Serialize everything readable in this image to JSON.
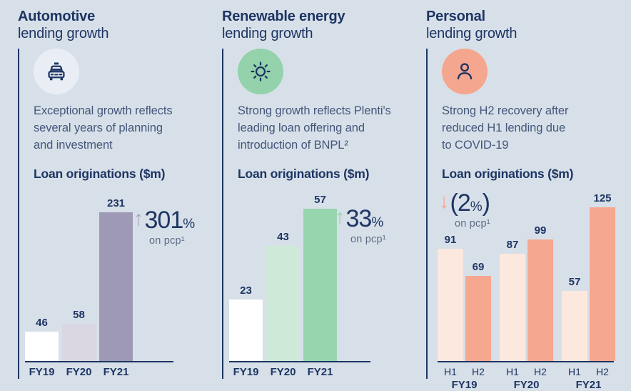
{
  "page": {
    "background": "#d7e0e9",
    "text_navy": "#1e3563",
    "body_text_color": "#44567a"
  },
  "columns": [
    {
      "title_bold": "Automotive",
      "title_rest": "lending growth",
      "icon": "taxi-icon",
      "icon_bg": "#e9eef5",
      "description": "Exceptional growth reflects\nseveral years of planning\nand investment",
      "chart_heading": "Loan originations ($m)",
      "callout": {
        "arrow": "↑",
        "arrow_color": "#a9a5c4",
        "prefix": "",
        "value": "301",
        "percent": "%",
        "close": "",
        "note": "on pcp¹"
      }
    },
    {
      "title_bold": "Renewable energy",
      "title_rest": "lending growth",
      "icon": "sun-icon",
      "icon_bg": "#93d2ab",
      "description": "Strong growth reflects Plenti's\nleading loan offering and\nintroduction of BNPL²",
      "chart_heading": "Loan originations ($m)",
      "callout": {
        "arrow": "↑",
        "arrow_color": "#95d3ac",
        "prefix": "",
        "value": "33",
        "percent": "%",
        "close": "",
        "note": "on pcp¹"
      }
    },
    {
      "title_bold": "Personal",
      "title_rest": "lending growth",
      "icon": "person-icon",
      "icon_bg": "#f5a68f",
      "description": "Strong H2 recovery after\nreduced H1 lending due\nto COVID-19",
      "chart_heading": "Loan originations ($m)",
      "callout": {
        "arrow": "↓",
        "arrow_color": "#f5a68f",
        "prefix": "(",
        "value": "2",
        "percent": "%",
        "close": ")",
        "note": "on pcp¹"
      }
    }
  ],
  "chart_data": [
    {
      "type": "bar",
      "title": "Loan originations ($m)",
      "subtitle": "Automotive lending growth",
      "categories": [
        "FY19",
        "FY20",
        "FY21"
      ],
      "values": [
        46,
        58,
        231
      ],
      "bar_colors": [
        "#ffffff",
        "#dad7e3",
        "#9e9ab5"
      ],
      "annotation": "↑301% on pcp¹",
      "xlabel": "",
      "ylabel": "",
      "grid": false,
      "legend": false
    },
    {
      "type": "bar",
      "title": "Loan originations ($m)",
      "subtitle": "Renewable energy lending growth",
      "categories": [
        "FY19",
        "FY20",
        "FY21"
      ],
      "values": [
        23,
        43,
        57
      ],
      "bar_colors": [
        "#ffffff",
        "#cfe9d9",
        "#97d5ae"
      ],
      "annotation": "↑33% on pcp¹",
      "xlabel": "",
      "ylabel": "",
      "grid": false,
      "legend": false
    },
    {
      "type": "bar",
      "title": "Loan originations ($m)",
      "subtitle": "Personal lending growth",
      "categories": [
        "FY19",
        "FY20",
        "FY21"
      ],
      "series": [
        {
          "name": "H1",
          "values": [
            91,
            87,
            57
          ],
          "color": "#fce8df"
        },
        {
          "name": "H2",
          "values": [
            69,
            99,
            125
          ],
          "color": "#f6a78f"
        }
      ],
      "annotation": "↓(2%) on pcp¹",
      "xlabel": "",
      "ylabel": "",
      "grid": false,
      "legend": false
    }
  ]
}
